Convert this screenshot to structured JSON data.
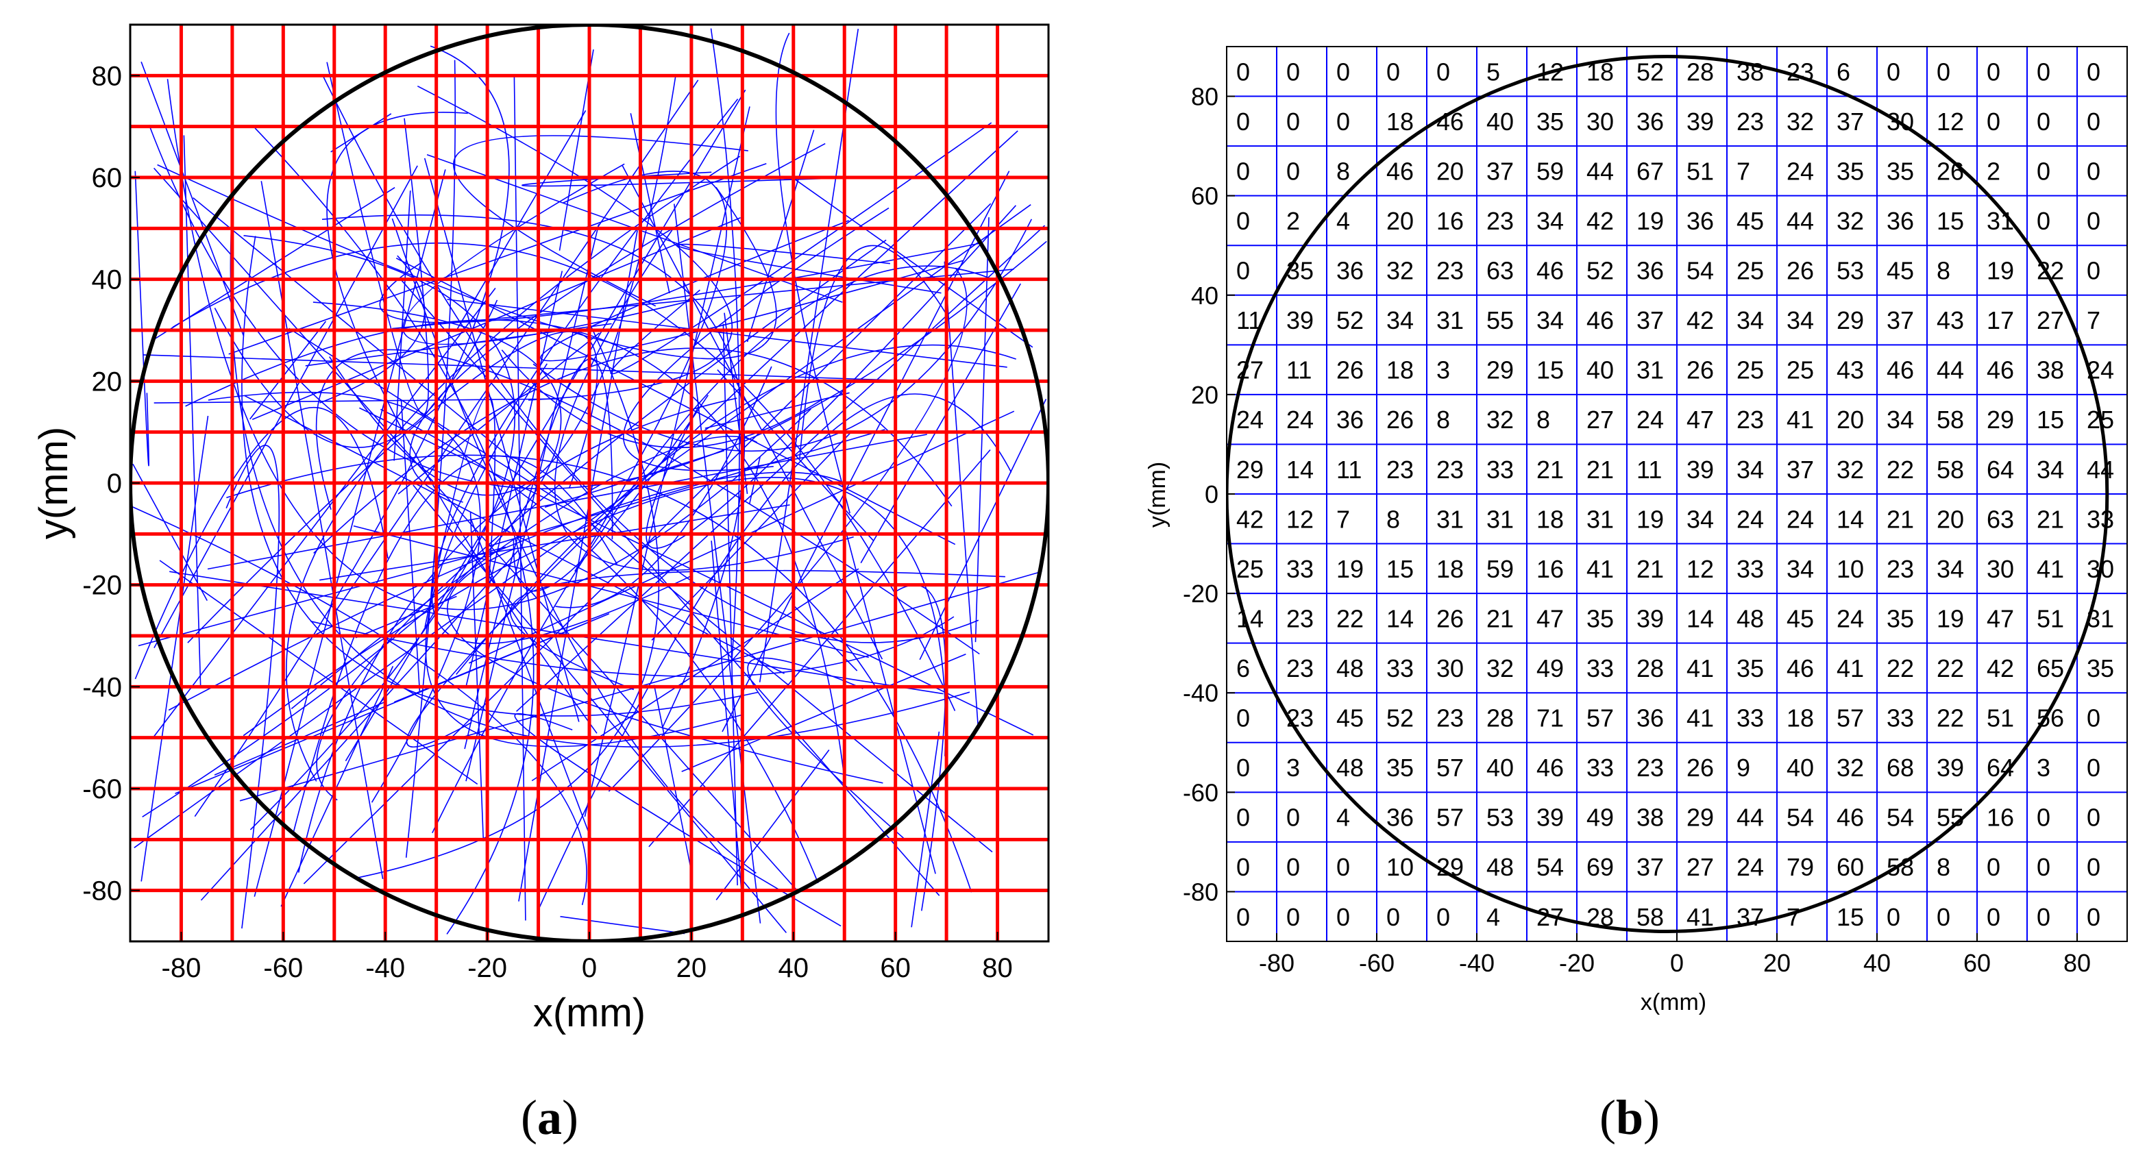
{
  "chart_data": [
    {
      "type": "line",
      "panel_label_open": "(",
      "panel_label_letter": "a",
      "panel_label_close": ")",
      "xlabel": "x(mm)",
      "ylabel": "y(mm)",
      "xlim": [
        -90,
        90
      ],
      "ylim": [
        -90,
        90
      ],
      "x_ticks": [
        -80,
        -60,
        -40,
        -20,
        0,
        20,
        40,
        60,
        80
      ],
      "y_ticks": [
        -80,
        -60,
        -40,
        -20,
        0,
        20,
        40,
        60,
        80
      ],
      "grid_lines_mm": [
        -80,
        -70,
        -60,
        -50,
        -40,
        -30,
        -20,
        -10,
        0,
        10,
        20,
        30,
        40,
        50,
        60,
        70,
        80
      ],
      "circle": {
        "center": [
          0,
          0
        ],
        "radius": 90
      },
      "colors": {
        "grid": "#ff0000",
        "trajectories": "#0000ff",
        "circle": "#000000"
      },
      "trajectory_count": 160
    },
    {
      "type": "heatmap",
      "panel_label_open": "(",
      "panel_label_letter": "b",
      "panel_label_close": ")",
      "xlabel": "x(mm)",
      "ylabel": "y(mm)",
      "xlim": [
        -90,
        90
      ],
      "ylim": [
        -90,
        90
      ],
      "x_ticks": [
        -80,
        -60,
        -40,
        -20,
        0,
        20,
        40,
        60,
        80
      ],
      "y_ticks": [
        -80,
        -60,
        -40,
        -20,
        0,
        20,
        40,
        60,
        80
      ],
      "circle": {
        "center": [
          -2,
          0
        ],
        "radius": 88
      },
      "colors": {
        "grid": "#0000ff",
        "text": "#000000",
        "circle": "#000000"
      },
      "rows_top_to_bottom": [
        [
          0,
          0,
          0,
          0,
          0,
          5,
          12,
          18,
          52,
          28,
          38,
          23,
          6,
          0,
          0,
          0,
          0,
          0
        ],
        [
          0,
          0,
          0,
          18,
          46,
          40,
          35,
          30,
          36,
          39,
          23,
          32,
          37,
          30,
          12,
          0,
          0,
          0
        ],
        [
          0,
          0,
          8,
          46,
          20,
          37,
          59,
          44,
          67,
          51,
          7,
          24,
          35,
          35,
          26,
          2,
          0,
          0
        ],
        [
          0,
          2,
          4,
          20,
          16,
          23,
          34,
          42,
          19,
          36,
          45,
          44,
          32,
          36,
          15,
          31,
          0,
          0
        ],
        [
          0,
          35,
          36,
          32,
          23,
          63,
          46,
          52,
          36,
          54,
          25,
          26,
          53,
          45,
          8,
          19,
          22,
          0
        ],
        [
          11,
          39,
          52,
          34,
          31,
          55,
          34,
          46,
          37,
          42,
          34,
          34,
          29,
          37,
          43,
          17,
          27,
          7
        ],
        [
          27,
          11,
          26,
          18,
          3,
          29,
          15,
          40,
          31,
          26,
          25,
          25,
          43,
          46,
          44,
          46,
          38,
          24
        ],
        [
          24,
          24,
          36,
          26,
          8,
          32,
          8,
          27,
          24,
          47,
          23,
          41,
          20,
          34,
          58,
          29,
          15,
          25
        ],
        [
          29,
          14,
          11,
          23,
          23,
          33,
          21,
          21,
          11,
          39,
          34,
          37,
          32,
          22,
          58,
          64,
          34,
          44
        ],
        [
          42,
          12,
          7,
          8,
          31,
          31,
          18,
          31,
          19,
          34,
          24,
          24,
          14,
          21,
          20,
          63,
          21,
          33
        ],
        [
          25,
          33,
          19,
          15,
          18,
          59,
          16,
          41,
          21,
          12,
          33,
          34,
          10,
          23,
          34,
          30,
          41,
          30
        ],
        [
          14,
          23,
          22,
          14,
          26,
          21,
          47,
          35,
          39,
          14,
          48,
          45,
          24,
          35,
          19,
          47,
          51,
          31
        ],
        [
          6,
          23,
          48,
          33,
          30,
          32,
          49,
          33,
          28,
          41,
          35,
          46,
          41,
          22,
          22,
          42,
          65,
          35
        ],
        [
          0,
          23,
          45,
          52,
          23,
          28,
          71,
          57,
          36,
          41,
          33,
          18,
          57,
          33,
          22,
          51,
          56,
          0
        ],
        [
          0,
          3,
          48,
          35,
          57,
          40,
          46,
          33,
          23,
          26,
          9,
          40,
          32,
          68,
          39,
          64,
          3,
          0
        ],
        [
          0,
          0,
          4,
          36,
          57,
          53,
          39,
          49,
          38,
          29,
          44,
          54,
          46,
          54,
          55,
          16,
          0,
          0
        ],
        [
          0,
          0,
          0,
          10,
          29,
          48,
          54,
          69,
          37,
          27,
          24,
          79,
          60,
          58,
          8,
          0,
          0,
          0
        ],
        [
          0,
          0,
          0,
          0,
          0,
          4,
          27,
          28,
          58,
          41,
          37,
          7,
          15,
          0,
          0,
          0,
          0,
          0
        ]
      ]
    }
  ]
}
